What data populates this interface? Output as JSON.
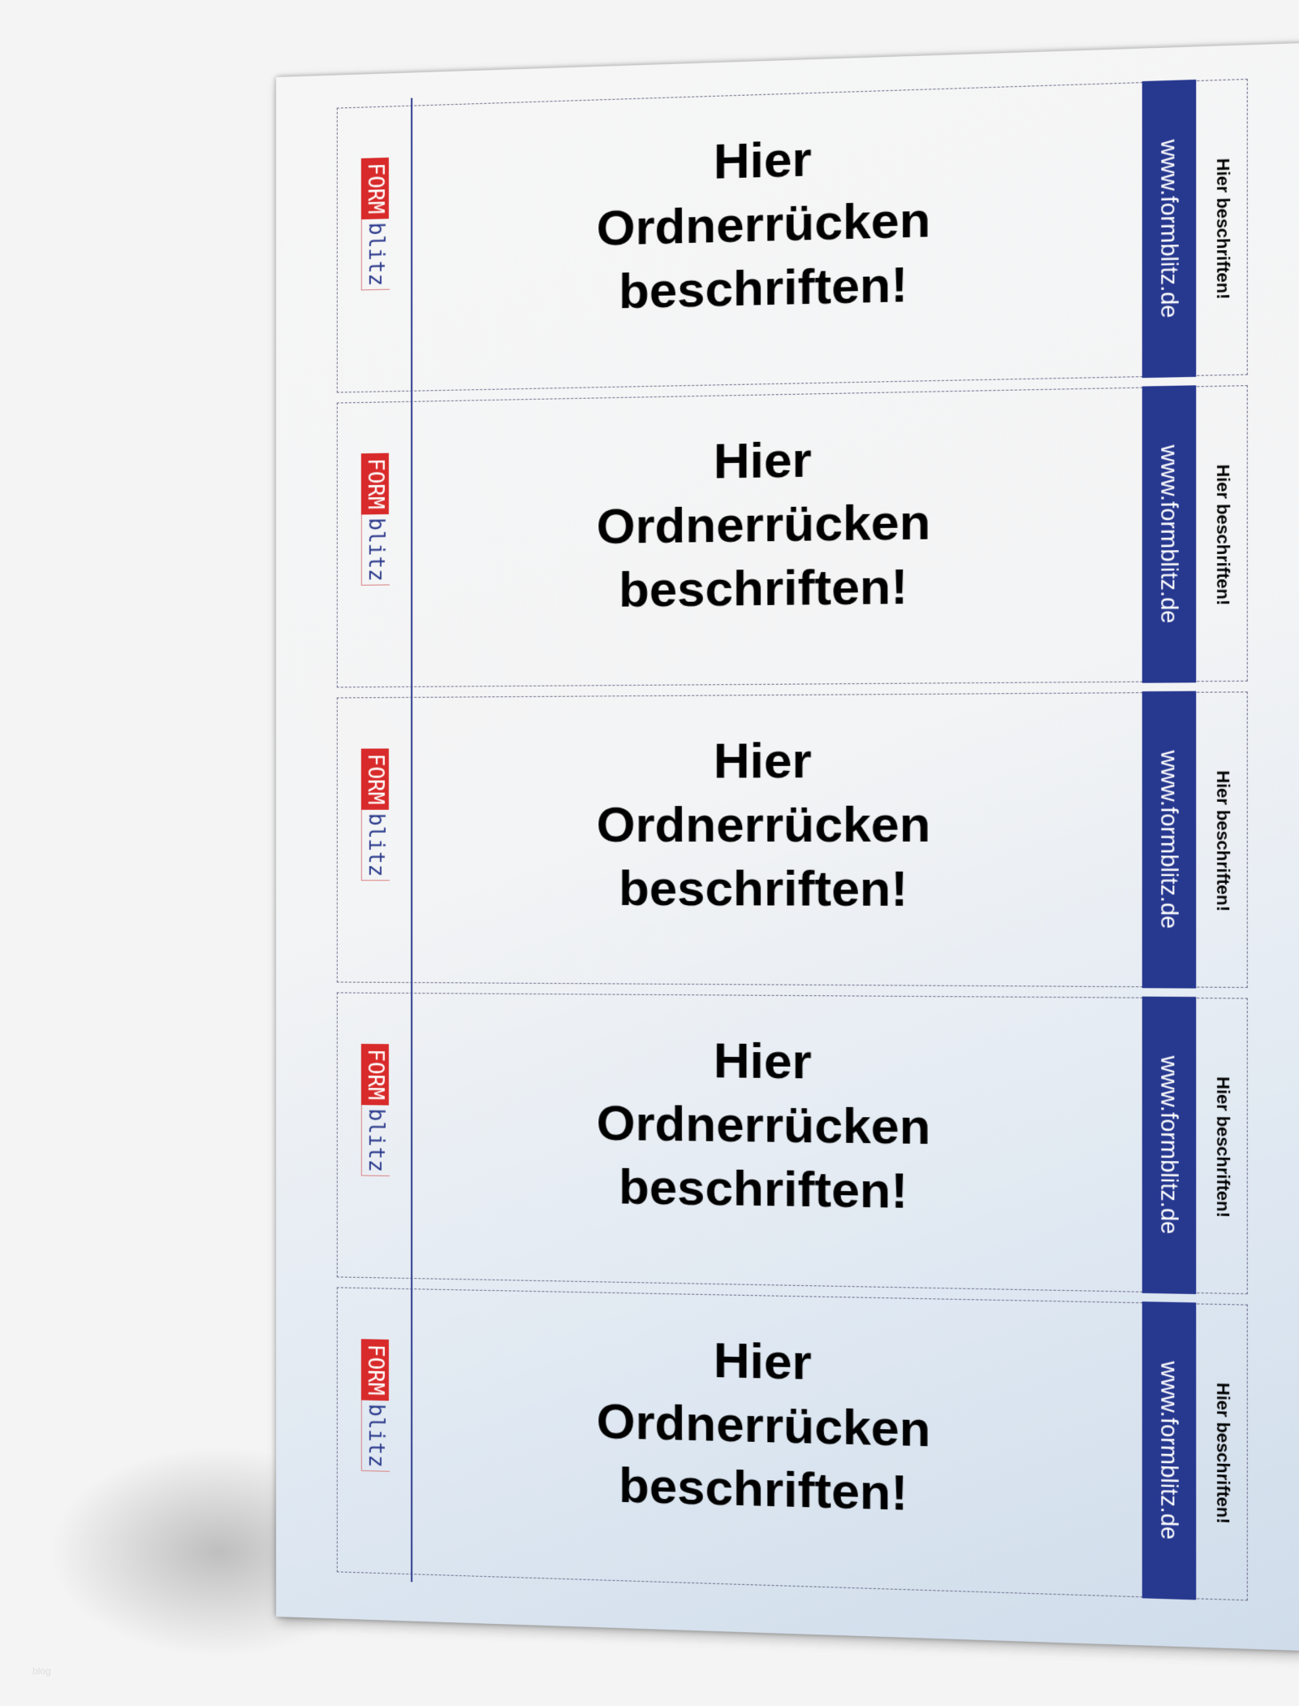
{
  "logo": {
    "part1": "FORM",
    "part2": "blitz"
  },
  "labels": [
    {
      "line1": "Hier",
      "line2": "Ordnerrücken",
      "line3": "beschriften!",
      "url": "www.formblitz.de",
      "side": "Hier beschriften!"
    },
    {
      "line1": "Hier",
      "line2": "Ordnerrücken",
      "line3": "beschriften!",
      "url": "www.formblitz.de",
      "side": "Hier beschriften!"
    },
    {
      "line1": "Hier",
      "line2": "Ordnerrücken",
      "line3": "beschriften!",
      "url": "www.formblitz.de",
      "side": "Hier beschriften!"
    },
    {
      "line1": "Hier",
      "line2": "Ordnerrücken",
      "line3": "beschriften!",
      "url": "www.formblitz.de",
      "side": "Hier beschriften!"
    },
    {
      "line1": "Hier",
      "line2": "Ordnerrücken",
      "line3": "beschriften!",
      "url": "www.formblitz.de",
      "side": "Hier beschriften!"
    }
  ],
  "watermark": "blog",
  "colors": {
    "brand_red": "#d82a2a",
    "brand_blue": "#27388f"
  }
}
